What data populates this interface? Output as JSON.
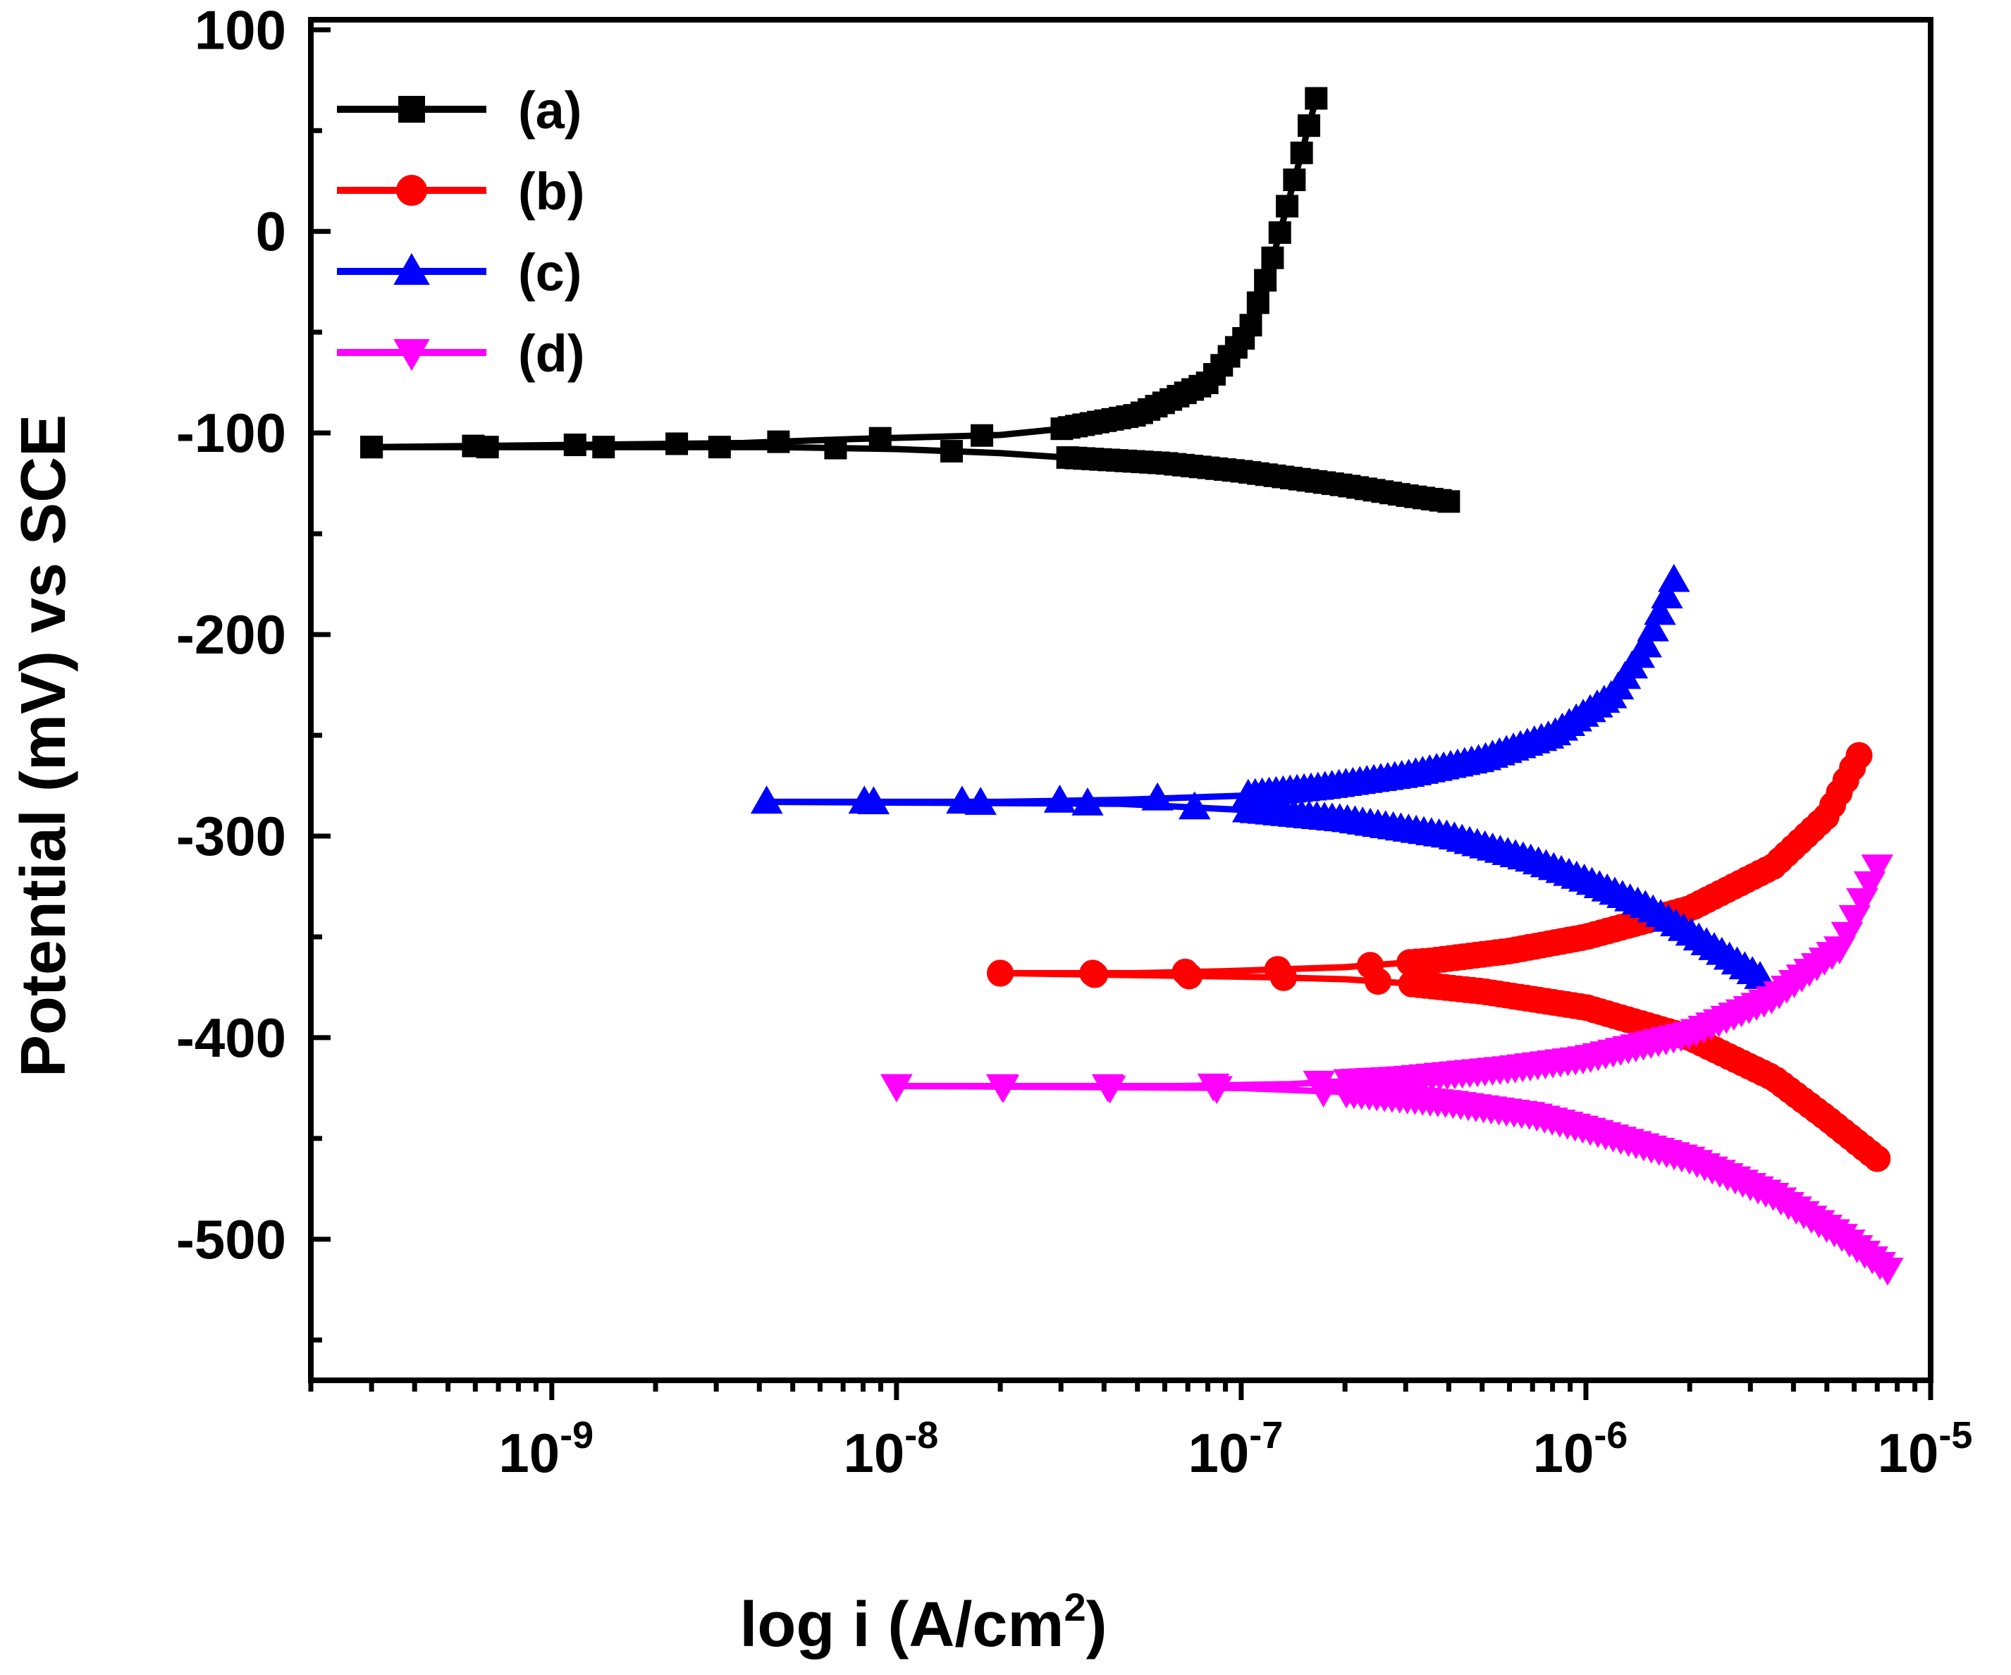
{
  "chart_data": {
    "type": "line",
    "title": "",
    "xlabel": "log i (A/cm",
    "xlabel_sup": "2",
    "xlabel_close": ")",
    "ylabel": "Potential (mV) vs SCE",
    "xscale": "log",
    "xlim": [
      2e-10,
      1e-05
    ],
    "ylim": [
      -570,
      105
    ],
    "y_ticks": [
      100,
      0,
      -100,
      -200,
      -300,
      -400,
      -500
    ],
    "x_ticks": [
      {
        "value": 1e-09,
        "base": "10",
        "exp": "-9"
      },
      {
        "value": 1e-08,
        "base": "10",
        "exp": "-8"
      },
      {
        "value": 1e-07,
        "base": "10",
        "exp": "-7"
      },
      {
        "value": 1e-06,
        "base": "10",
        "exp": "-6"
      },
      {
        "value": 1e-05,
        "base": "10",
        "exp": "-5"
      }
    ],
    "legend_position": "top-left",
    "series": [
      {
        "name": "(a)",
        "color": "#000000",
        "marker": "square",
        "corr_current": 3e-08,
        "corr_potential": -107,
        "anodic": [
          [
            3e-10,
            -107
          ],
          [
            3.6e-09,
            -105
          ],
          [
            7.5e-09,
            -103
          ],
          [
            2e-08,
            -101
          ],
          [
            3e-08,
            -98
          ],
          [
            5e-08,
            -91
          ],
          [
            8e-08,
            -75
          ],
          [
            1.05e-07,
            -50
          ],
          [
            1.25e-07,
            -10
          ],
          [
            1.45e-07,
            30
          ],
          [
            1.65e-07,
            66
          ]
        ],
        "cathodic": [
          [
            3e-10,
            -107
          ],
          [
            4.5e-09,
            -107
          ],
          [
            1e-08,
            -108
          ],
          [
            2e-08,
            -110
          ],
          [
            3e-08,
            -112
          ],
          [
            6e-08,
            -115
          ],
          [
            1e-07,
            -119
          ],
          [
            2e-07,
            -126
          ],
          [
            3e-07,
            -131
          ],
          [
            4e-07,
            -134
          ]
        ]
      },
      {
        "name": "(b)",
        "color": "#ff0000",
        "marker": "circle",
        "corr_current": 3e-07,
        "corr_potential": -368,
        "anodic": [
          [
            2e-08,
            -368
          ],
          [
            5e-08,
            -368
          ],
          [
            9e-08,
            -367
          ],
          [
            2e-07,
            -365
          ],
          [
            3.5e-07,
            -362
          ],
          [
            6e-07,
            -357
          ],
          [
            1e-06,
            -350
          ],
          [
            2e-06,
            -336
          ],
          [
            3.5e-06,
            -315
          ],
          [
            5e-06,
            -290
          ],
          [
            6.2e-06,
            -260
          ]
        ],
        "cathodic": [
          [
            2e-08,
            -368
          ],
          [
            1.2e-07,
            -370
          ],
          [
            2e-07,
            -371
          ],
          [
            3e-07,
            -373
          ],
          [
            5e-07,
            -377
          ],
          [
            1e-06,
            -385
          ],
          [
            2e-06,
            -400
          ],
          [
            3.5e-06,
            -420
          ],
          [
            5e-06,
            -440
          ],
          [
            7e-06,
            -460
          ]
        ]
      },
      {
        "name": "(c)",
        "color": "#0000ff",
        "marker": "triangle-up",
        "corr_current": 1e-07,
        "corr_potential": -283,
        "anodic": [
          [
            4.2e-09,
            -283
          ],
          [
            2e-08,
            -283
          ],
          [
            4.5e-08,
            -282
          ],
          [
            1e-07,
            -280
          ],
          [
            1.7e-07,
            -276
          ],
          [
            3e-07,
            -270
          ],
          [
            5e-07,
            -262
          ],
          [
            8e-07,
            -250
          ],
          [
            1.2e-06,
            -230
          ],
          [
            1.5e-06,
            -205
          ],
          [
            1.8e-06,
            -173
          ]
        ],
        "cathodic": [
          [
            4.2e-09,
            -283
          ],
          [
            4.5e-08,
            -284
          ],
          [
            1e-07,
            -287
          ],
          [
            2e-07,
            -292
          ],
          [
            4e-07,
            -300
          ],
          [
            7e-07,
            -312
          ],
          [
            1e-06,
            -322
          ],
          [
            1.5e-06,
            -335
          ],
          [
            2e-06,
            -348
          ],
          [
            2.7e-06,
            -362
          ],
          [
            3.2e-06,
            -370
          ]
        ]
      },
      {
        "name": "(d)",
        "color": "#ff00ff",
        "marker": "triangle-down",
        "corr_current": 2e-07,
        "corr_potential": -424,
        "anodic": [
          [
            1e-08,
            -424
          ],
          [
            6.5e-08,
            -424
          ],
          [
            1.4e-07,
            -423
          ],
          [
            3e-07,
            -420
          ],
          [
            6e-07,
            -415
          ],
          [
            1e-06,
            -410
          ],
          [
            2e-06,
            -398
          ],
          [
            3.5e-06,
            -380
          ],
          [
            5.5e-06,
            -355
          ],
          [
            7e-06,
            -315
          ]
        ],
        "cathodic": [
          [
            1e-08,
            -424
          ],
          [
            1e-07,
            -425
          ],
          [
            2e-07,
            -427
          ],
          [
            4e-07,
            -432
          ],
          [
            7e-07,
            -438
          ],
          [
            1e-06,
            -445
          ],
          [
            2e-06,
            -460
          ],
          [
            3.5e-06,
            -478
          ],
          [
            5.5e-06,
            -498
          ],
          [
            7.5e-06,
            -515
          ]
        ]
      }
    ]
  }
}
